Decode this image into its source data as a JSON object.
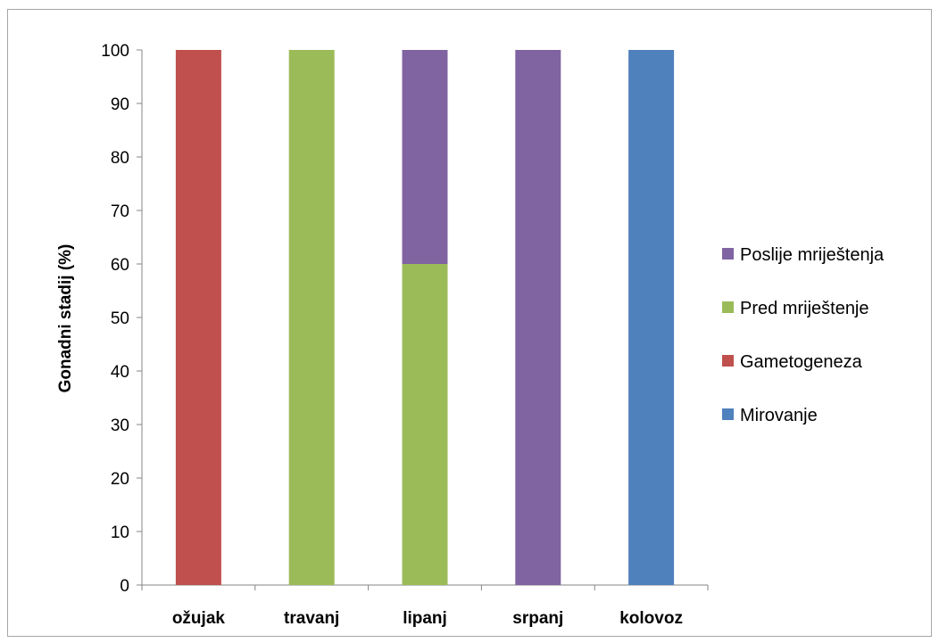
{
  "chart_data": {
    "type": "bar",
    "stacked": true,
    "title": "",
    "xlabel": "",
    "ylabel": "Gonadni stadij (%)",
    "ylim": [
      0,
      100
    ],
    "yticks": [
      0,
      10,
      20,
      30,
      40,
      50,
      60,
      70,
      80,
      90,
      100
    ],
    "grid": false,
    "legend_position": "right",
    "categories": [
      "ožujak",
      "travanj",
      "lipanj",
      "srpanj",
      "kolovoz"
    ],
    "series": [
      {
        "name": "Mirovanje",
        "color": "#4f81bd",
        "values": [
          0,
          0,
          0,
          0,
          100
        ]
      },
      {
        "name": "Gametogeneza",
        "color": "#c0504d",
        "values": [
          100,
          0,
          0,
          0,
          0
        ]
      },
      {
        "name": "Pred mriještenje",
        "color": "#9bbb59",
        "values": [
          0,
          100,
          60,
          0,
          0
        ]
      },
      {
        "name": "Poslije mriještenja",
        "color": "#8064a2",
        "values": [
          0,
          0,
          40,
          100,
          0
        ]
      }
    ],
    "legend_order": [
      "Poslije mriještenja",
      "Pred mriještenje",
      "Gametogeneza",
      "Mirovanje"
    ]
  }
}
